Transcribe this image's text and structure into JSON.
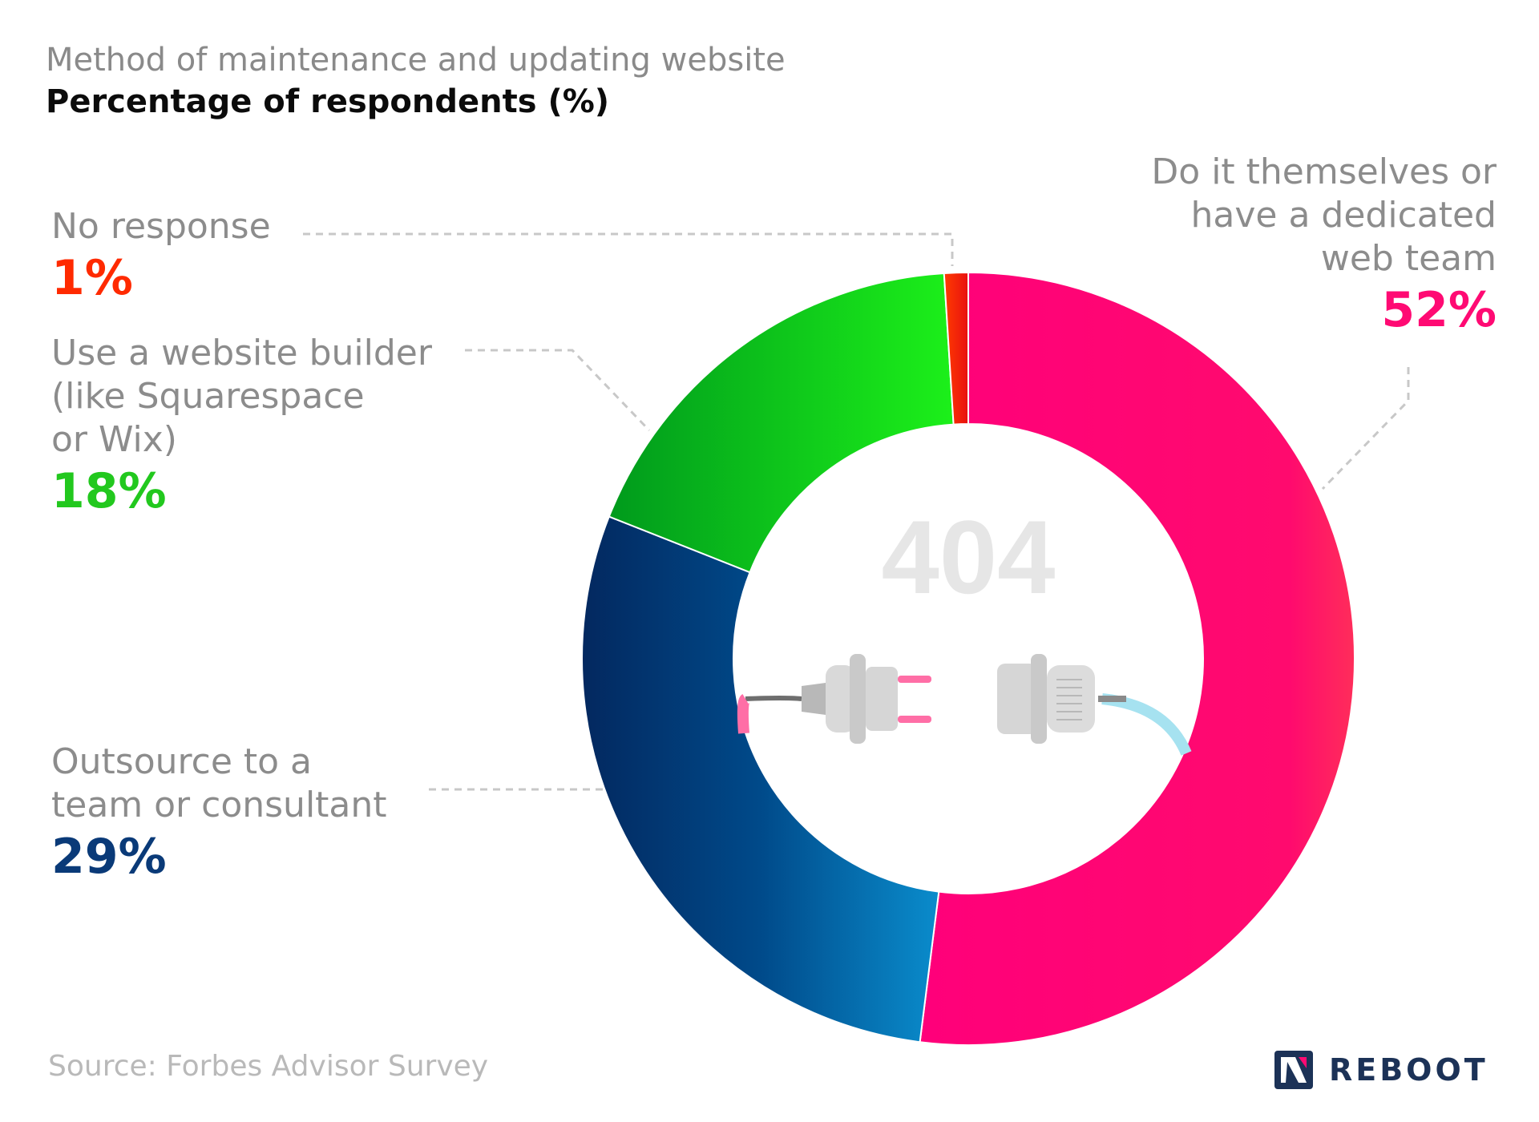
{
  "title": "Method of maintenance and updating website",
  "subtitle": "Percentage of respondents (%)",
  "source": "Source: Forbes Advisor Survey",
  "brand": "REBOOT",
  "center_text": "404",
  "icons": [
    "unplugged-cable-icon",
    "reboot-logo-icon"
  ],
  "chart_data": {
    "type": "pie",
    "variant": "donut",
    "title": "Method of maintenance and updating website",
    "subtitle": "Percentage of respondents (%)",
    "unit": "%",
    "slices": [
      {
        "label": "Do it themselves or have a dedicated web team",
        "value": 52,
        "display": "52%",
        "color": "#ff0a73"
      },
      {
        "label": "Outsource to a team or consultant",
        "value": 29,
        "display": "29%",
        "color": "#0a3a78"
      },
      {
        "label": "Use a website builder (like Squarespace or Wix)",
        "value": 18,
        "display": "18%",
        "color": "#22c81e"
      },
      {
        "label": "No response",
        "value": 1,
        "display": "1%",
        "color": "#ff2a00"
      }
    ]
  },
  "labels": {
    "themselves": [
      "Do it themselves or",
      "have a dedicated",
      "web team"
    ],
    "builder": [
      "Use a website builder",
      "(like Squarespace",
      "or Wix)"
    ],
    "outsource": [
      "Outsource to a",
      "team or consultant"
    ]
  },
  "colors": {
    "themselves": "#ff0a73",
    "outsource": "#0a3a78",
    "builder": "#22c81e",
    "no_response": "#ff2a00",
    "text_gray": "#8c8c8c"
  }
}
